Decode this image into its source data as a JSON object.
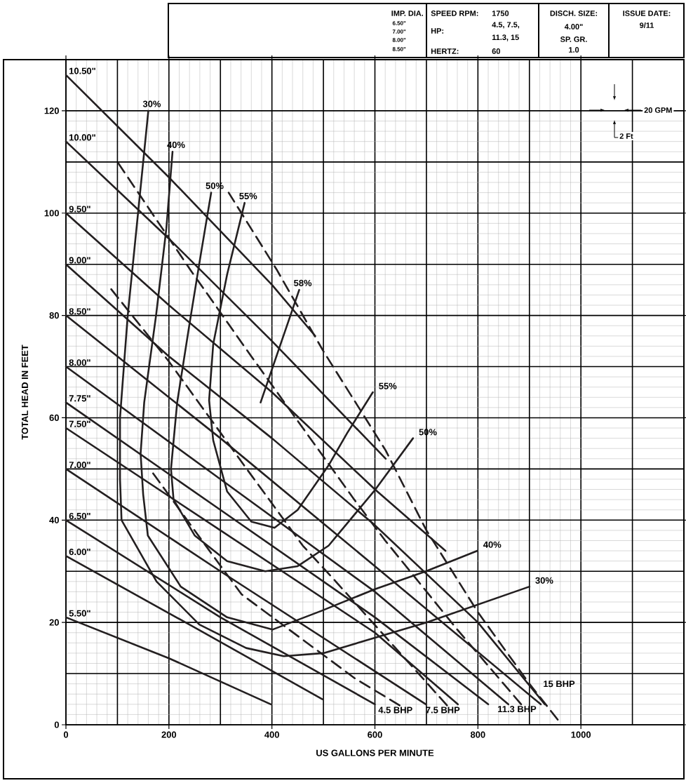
{
  "chart_data": {
    "type": "line",
    "xlabel": "US GALLONS PER MINUTE",
    "ylabel": "TOTAL HEAD IN FEET",
    "xlim": [
      0,
      1200
    ],
    "ylim": [
      0,
      130
    ],
    "xticks": [
      0,
      200,
      400,
      600,
      800,
      1000
    ],
    "yticks": [
      0,
      20,
      40,
      60,
      80,
      100,
      120
    ],
    "grid": true,
    "series": [
      {
        "name": "10.50\"",
        "color": "#231f20",
        "x": [
          0,
          200,
          400,
          484
        ],
        "values": [
          127,
          107,
          86,
          76
        ]
      },
      {
        "name": "10.00\"",
        "color": "#231f20",
        "x": [
          0,
          200,
          400,
          621
        ],
        "values": [
          114,
          95,
          75,
          52
        ]
      },
      {
        "name": "9.50\"",
        "color": "#231f20",
        "x": [
          0,
          200,
          400,
          600,
          737
        ],
        "values": [
          100,
          82,
          65,
          46,
          34
        ]
      },
      {
        "name": "9.00\"",
        "color": "#231f20",
        "x": [
          0,
          200,
          400,
          600,
          800,
          930
        ],
        "values": [
          90,
          72,
          56,
          39,
          20,
          4
        ]
      },
      {
        "name": "8.50\"",
        "color": "#231f20",
        "x": [
          0,
          300,
          600,
          922
        ],
        "values": [
          80,
          56,
          31,
          4
        ]
      },
      {
        "name": "8.00\"",
        "color": "#231f20",
        "x": [
          0,
          300,
          600,
          859
        ],
        "values": [
          70,
          48,
          26,
          4
        ]
      },
      {
        "name": "7.75\"",
        "color": "#231f20",
        "x": [
          0,
          300,
          600,
          820
        ],
        "values": [
          63,
          42,
          21,
          4
        ]
      },
      {
        "name": "7.50\"",
        "color": "#231f20",
        "x": [
          0,
          300,
          600,
          761
        ],
        "values": [
          58,
          38,
          18,
          4
        ]
      },
      {
        "name": "7.00\"",
        "color": "#231f20",
        "x": [
          0,
          300,
          699
        ],
        "values": [
          50,
          30,
          4
        ]
      },
      {
        "name": "6.50\"",
        "color": "#231f20",
        "x": [
          0,
          300,
          600
        ],
        "values": [
          40,
          21,
          4
        ]
      },
      {
        "name": "6.00\"",
        "color": "#231f20",
        "x": [
          0,
          250,
          498
        ],
        "values": [
          33,
          19,
          5
        ]
      },
      {
        "name": "5.50\"",
        "color": "#231f20",
        "x": [
          0,
          200,
          398
        ],
        "values": [
          21,
          13,
          4
        ]
      },
      {
        "name": "30%",
        "color": "#231f20",
        "x": [
          160,
          140,
          120,
          105,
          105,
          108,
          176,
          259,
          350,
          423,
          500,
          600,
          700,
          800,
          900
        ],
        "values": [
          120,
          100,
          80,
          60,
          48,
          40,
          28,
          19.6,
          15,
          13.4,
          14,
          17,
          20,
          23.5,
          27
        ]
      },
      {
        "name": "40%",
        "color": "#231f20",
        "x": [
          207,
          195,
          175,
          152,
          145,
          150,
          159,
          223,
          313,
          401,
          497,
          600,
          699,
          799
        ],
        "values": [
          112,
          97,
          80,
          63,
          53,
          45,
          37,
          27,
          21,
          18.6,
          22.3,
          26.5,
          30,
          34
        ]
      },
      {
        "name": "50%",
        "color": "#231f20",
        "x": [
          282,
          262,
          241,
          216,
          204,
          209,
          250,
          313,
          387,
          450,
          510,
          601,
          674
        ],
        "values": [
          104,
          92,
          79,
          63,
          50,
          44,
          37,
          32,
          30,
          31,
          35,
          46,
          56
        ]
      },
      {
        "name": "55%",
        "color": "#231f20",
        "x": [
          347,
          313,
          286,
          278,
          286,
          313,
          360,
          405,
          450,
          510,
          546,
          596
        ],
        "values": [
          102,
          88,
          74.4,
          63.4,
          55.6,
          45.6,
          39.7,
          38.5,
          42,
          50.7,
          57,
          65
        ]
      },
      {
        "name": "58%",
        "color": "#231f20",
        "x": [
          453,
          378
        ],
        "values": [
          85,
          63
        ]
      },
      {
        "name": "4.5 BHP",
        "color": "#231f20",
        "line_style": "dashed",
        "x": [
          648,
          562,
          341,
          286,
          163
        ],
        "values": [
          3.8,
          9,
          25.5,
          33,
          50
        ]
      },
      {
        "name": "7.5 BHP",
        "color": "#231f20",
        "line_style": "dashed",
        "x": [
          740,
          524,
          460,
          346,
          200,
          81
        ],
        "values": [
          3.8,
          28,
          35,
          50.7,
          71,
          86
        ]
      },
      {
        "name": "11.3 BHP",
        "color": "#231f20",
        "line_style": "dashed",
        "x": [
          884,
          760,
          620,
          560,
          360,
          241,
          100
        ],
        "values": [
          4,
          18.6,
          36,
          44,
          72,
          89,
          110
        ]
      },
      {
        "name": "15 BHP",
        "color": "#231f20",
        "line_style": "dashed",
        "x": [
          955,
          900,
          800,
          700,
          621,
          500,
          409,
          316
        ],
        "values": [
          1,
          8,
          22,
          38,
          53.6,
          73,
          89,
          104
        ]
      }
    ],
    "annotations": [
      "IMP. DIA.",
      "6.50\"",
      "7.00\"",
      "8.00\"",
      "8.50\"",
      "SPEED RPM:",
      "1750",
      "HP:",
      "4.5, 7.5,",
      "11.3, 15",
      "HERTZ:",
      "60",
      "DISCH. SIZE:",
      "4.00\"",
      "SP. GR.",
      "1.0",
      "ISSUE DATE:",
      "9/11",
      "20 GPM",
      "2 Ft",
      {
        "text": "30%",
        "x": 900,
        "y": 27
      },
      {
        "text": "40%",
        "x": 799,
        "y": 34
      },
      {
        "text": "50%",
        "x": 674,
        "y": 56
      },
      {
        "text": "55%",
        "x": 596,
        "y": 65
      }
    ]
  }
}
